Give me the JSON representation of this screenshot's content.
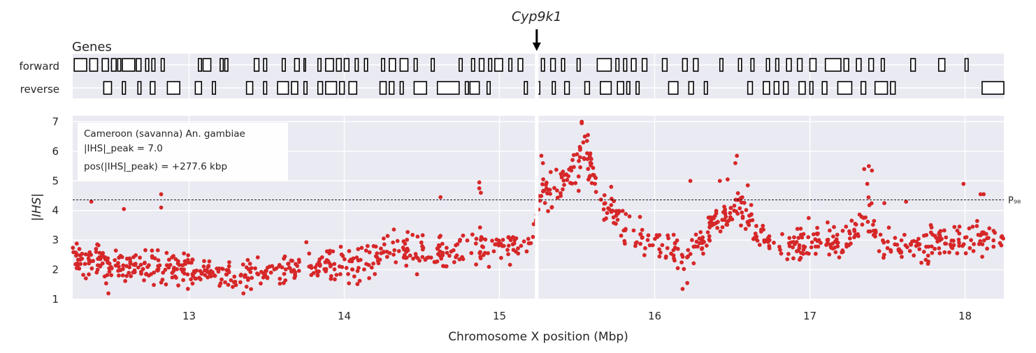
{
  "chart_data": {
    "type": "scatter",
    "gene_label": "Cyp9k1",
    "gene_position_mbp": 15.24,
    "genes_panel": {
      "title": "Genes",
      "strands": [
        "forward",
        "reverse"
      ],
      "forward_genes": [
        [
          12.26,
          12.34
        ],
        [
          12.36,
          12.41
        ],
        [
          12.44,
          12.48
        ],
        [
          12.5,
          12.53
        ],
        [
          12.54,
          12.56
        ],
        [
          12.57,
          12.65
        ],
        [
          12.66,
          12.69
        ],
        [
          12.72,
          12.74
        ],
        [
          12.76,
          12.78
        ],
        [
          12.82,
          12.84
        ],
        [
          13.06,
          13.08
        ],
        [
          13.09,
          13.14
        ],
        [
          13.2,
          13.22
        ],
        [
          13.23,
          13.25
        ],
        [
          13.42,
          13.45
        ],
        [
          13.48,
          13.5
        ],
        [
          13.6,
          13.62
        ],
        [
          13.68,
          13.71
        ],
        [
          13.74,
          13.75
        ],
        [
          13.83,
          13.85
        ],
        [
          13.88,
          13.93
        ],
        [
          13.95,
          13.98
        ],
        [
          14.0,
          14.03
        ],
        [
          14.07,
          14.09
        ],
        [
          14.13,
          14.15
        ],
        [
          14.24,
          14.26
        ],
        [
          14.29,
          14.33
        ],
        [
          14.36,
          14.41
        ],
        [
          14.45,
          14.47
        ],
        [
          14.56,
          14.58
        ],
        [
          14.74,
          14.76
        ],
        [
          14.82,
          14.84
        ],
        [
          14.87,
          14.9
        ],
        [
          14.93,
          14.95
        ],
        [
          14.97,
          15.02
        ],
        [
          15.06,
          15.08
        ],
        [
          15.12,
          15.15
        ],
        [
          15.27,
          15.29
        ],
        [
          15.33,
          15.36
        ],
        [
          15.4,
          15.42
        ],
        [
          15.5,
          15.52
        ],
        [
          15.63,
          15.72
        ],
        [
          15.75,
          15.77
        ],
        [
          15.8,
          15.82
        ],
        [
          15.85,
          15.88
        ],
        [
          15.92,
          15.95
        ],
        [
          16.05,
          16.08
        ],
        [
          16.18,
          16.21
        ],
        [
          16.25,
          16.28
        ],
        [
          16.42,
          16.44
        ],
        [
          16.54,
          16.56
        ],
        [
          16.62,
          16.64
        ],
        [
          16.72,
          16.74
        ],
        [
          16.78,
          16.8
        ],
        [
          16.85,
          16.88
        ],
        [
          16.92,
          16.95
        ],
        [
          17.0,
          17.04
        ],
        [
          17.1,
          17.2
        ],
        [
          17.22,
          17.25
        ],
        [
          17.3,
          17.33
        ],
        [
          17.38,
          17.41
        ],
        [
          17.46,
          17.48
        ],
        [
          17.65,
          17.68
        ],
        [
          17.83,
          17.87
        ],
        [
          18.0,
          18.02
        ]
      ],
      "reverse_genes": [
        [
          12.45,
          12.5
        ],
        [
          12.57,
          12.59
        ],
        [
          12.67,
          12.69
        ],
        [
          12.75,
          12.78
        ],
        [
          12.86,
          12.94
        ],
        [
          13.04,
          13.08
        ],
        [
          13.15,
          13.17
        ],
        [
          13.37,
          13.41
        ],
        [
          13.48,
          13.5
        ],
        [
          13.57,
          13.64
        ],
        [
          13.66,
          13.7
        ],
        [
          13.74,
          13.76
        ],
        [
          13.83,
          13.86
        ],
        [
          13.88,
          13.95
        ],
        [
          13.97,
          14.0
        ],
        [
          14.03,
          14.08
        ],
        [
          14.23,
          14.27
        ],
        [
          14.29,
          14.32
        ],
        [
          14.36,
          14.38
        ],
        [
          14.45,
          14.53
        ],
        [
          14.6,
          14.74
        ],
        [
          14.78,
          14.8
        ],
        [
          14.81,
          14.87
        ],
        [
          14.92,
          14.94
        ],
        [
          15.16,
          15.18
        ],
        [
          15.24,
          15.26
        ],
        [
          15.34,
          15.36
        ],
        [
          15.42,
          15.45
        ],
        [
          15.55,
          15.58
        ],
        [
          15.65,
          15.72
        ],
        [
          15.76,
          15.8
        ],
        [
          15.82,
          15.84
        ],
        [
          15.88,
          15.9
        ],
        [
          16.09,
          16.15
        ],
        [
          16.22,
          16.25
        ],
        [
          16.32,
          16.34
        ],
        [
          16.6,
          16.63
        ],
        [
          16.7,
          16.74
        ],
        [
          16.77,
          16.8
        ],
        [
          16.83,
          16.86
        ],
        [
          16.93,
          16.97
        ],
        [
          17.0,
          17.02
        ],
        [
          17.08,
          17.11
        ],
        [
          17.18,
          17.27
        ],
        [
          17.33,
          17.36
        ],
        [
          17.42,
          17.5
        ],
        [
          17.52,
          17.55
        ],
        [
          18.11,
          18.25
        ]
      ]
    },
    "ihs_panel": {
      "ylabel": "|IHS|",
      "xlabel": "Chromosome X position (Mbp)",
      "xlim": [
        12.25,
        18.25
      ],
      "ylim": [
        1,
        7.2
      ],
      "xticks": [
        13,
        14,
        15,
        16,
        17,
        18
      ],
      "yticks": [
        1,
        2,
        3,
        4,
        5,
        6,
        7
      ],
      "threshold": {
        "value": 4.36,
        "label": "P₉₈"
      },
      "legend": {
        "line1": "Cameroon (savanna) An. gambiae",
        "line2": "|IHS|_peak = 7.0",
        "line3": "pos(|IHS|_peak) = +277.6 kbp"
      },
      "point_color": "#d62728",
      "anchors": [
        [
          12.25,
          2.4,
          0.5
        ],
        [
          12.5,
          2.1,
          0.45
        ],
        [
          12.8,
          2.1,
          0.5
        ],
        [
          13.0,
          2.0,
          0.45
        ],
        [
          13.3,
          1.85,
          0.4
        ],
        [
          13.6,
          2.05,
          0.45
        ],
        [
          13.9,
          2.15,
          0.45
        ],
        [
          14.1,
          2.2,
          0.45
        ],
        [
          14.3,
          2.6,
          0.5
        ],
        [
          14.6,
          2.55,
          0.5
        ],
        [
          14.9,
          2.75,
          0.5
        ],
        [
          15.08,
          2.8,
          0.45
        ],
        [
          15.2,
          3.0,
          0.4
        ],
        [
          15.27,
          4.5,
          0.6
        ],
        [
          15.4,
          4.9,
          0.6
        ],
        [
          15.5,
          5.5,
          0.6
        ],
        [
          15.56,
          6.0,
          0.6
        ],
        [
          15.65,
          4.6,
          0.6
        ],
        [
          15.8,
          3.4,
          0.5
        ],
        [
          15.95,
          3.0,
          0.5
        ],
        [
          16.1,
          2.6,
          0.5
        ],
        [
          16.2,
          2.2,
          0.4
        ],
        [
          16.35,
          3.5,
          0.5
        ],
        [
          16.55,
          4.0,
          0.5
        ],
        [
          16.7,
          3.0,
          0.5
        ],
        [
          16.85,
          2.7,
          0.4
        ],
        [
          17.0,
          3.0,
          0.45
        ],
        [
          17.2,
          2.9,
          0.5
        ],
        [
          17.38,
          3.8,
          0.6
        ],
        [
          17.5,
          2.8,
          0.5
        ],
        [
          17.7,
          2.9,
          0.5
        ],
        [
          17.9,
          2.9,
          0.5
        ],
        [
          18.1,
          3.1,
          0.5
        ],
        [
          18.25,
          3.0,
          0.5
        ]
      ],
      "highlights": [
        [
          12.82,
          4.55
        ],
        [
          12.82,
          4.1
        ],
        [
          12.58,
          4.05
        ],
        [
          12.37,
          4.3
        ],
        [
          14.62,
          4.45
        ],
        [
          14.87,
          4.95
        ],
        [
          14.87,
          4.75
        ],
        [
          14.88,
          4.6
        ],
        [
          15.27,
          5.85
        ],
        [
          15.28,
          5.6
        ],
        [
          15.33,
          5.3
        ],
        [
          15.42,
          5.2
        ],
        [
          15.46,
          5.45
        ],
        [
          15.5,
          5.9
        ],
        [
          15.52,
          6.1
        ],
        [
          15.54,
          6.3
        ],
        [
          15.55,
          6.5
        ],
        [
          15.57,
          6.55
        ],
        [
          15.53,
          7.0
        ],
        [
          15.53,
          6.95
        ],
        [
          15.62,
          5.1
        ],
        [
          15.72,
          4.8
        ],
        [
          16.23,
          5.0
        ],
        [
          16.53,
          5.85
        ],
        [
          16.52,
          5.6
        ],
        [
          16.47,
          5.05
        ],
        [
          16.42,
          5.0
        ],
        [
          16.6,
          4.85
        ],
        [
          17.35,
          5.4
        ],
        [
          17.38,
          5.5
        ],
        [
          17.4,
          5.35
        ],
        [
          17.37,
          4.9
        ],
        [
          17.99,
          4.9
        ],
        [
          18.1,
          4.55
        ],
        [
          18.12,
          4.55
        ],
        [
          16.18,
          1.35
        ],
        [
          16.21,
          1.55
        ],
        [
          13.35,
          1.2
        ],
        [
          12.48,
          1.2
        ],
        [
          17.48,
          4.25
        ],
        [
          17.62,
          4.3
        ]
      ]
    }
  }
}
